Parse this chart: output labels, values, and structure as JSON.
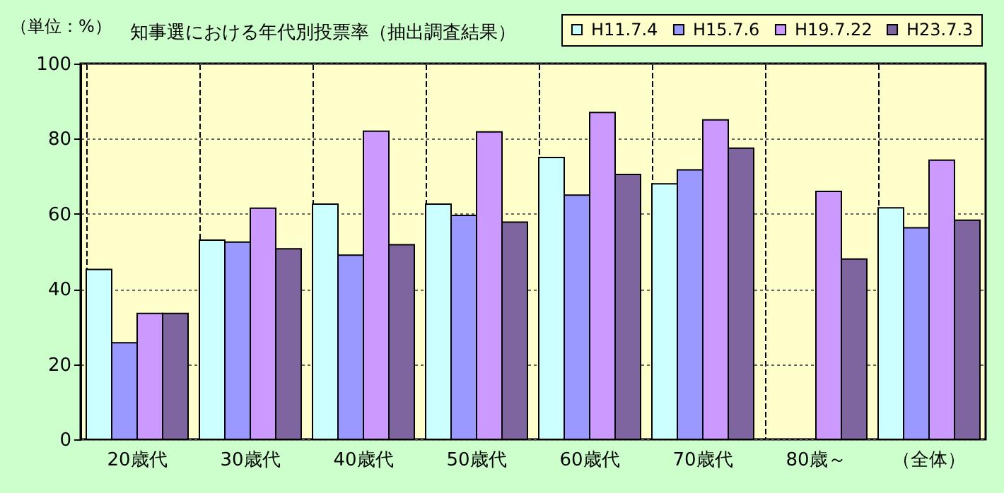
{
  "chart_data": {
    "type": "bar",
    "title": "知事選における年代別投票率（抽出調査結果）",
    "ylabel": "（単位：%）",
    "categories": [
      "20歳代",
      "30歳代",
      "40歳代",
      "50歳代",
      "60歳代",
      "70歳代",
      "80歳～",
      "（全体）"
    ],
    "series": [
      {
        "name": "H11.7.4",
        "color": "#ccffff",
        "values": [
          45.2,
          53,
          62.6,
          62.6,
          75,
          68,
          null,
          61.6
        ]
      },
      {
        "name": "H15.7.6",
        "color": "#9999ff",
        "values": [
          25.7,
          52.5,
          49,
          59.6,
          65,
          71.7,
          null,
          56.3
        ]
      },
      {
        "name": "H19.7.22",
        "color": "#cc99ff",
        "values": [
          33.5,
          61.5,
          82,
          81.8,
          87,
          85,
          66,
          74.3
        ]
      },
      {
        "name": "H23.7.3",
        "color": "#7f659f",
        "values": [
          33.5,
          50.7,
          51.8,
          57.8,
          70.5,
          77.5,
          48,
          58.3
        ]
      }
    ],
    "ylim": [
      0,
      100
    ],
    "yticks": [
      0,
      20,
      40,
      60,
      80,
      100
    ],
    "grid": true,
    "legend": "top right"
  }
}
